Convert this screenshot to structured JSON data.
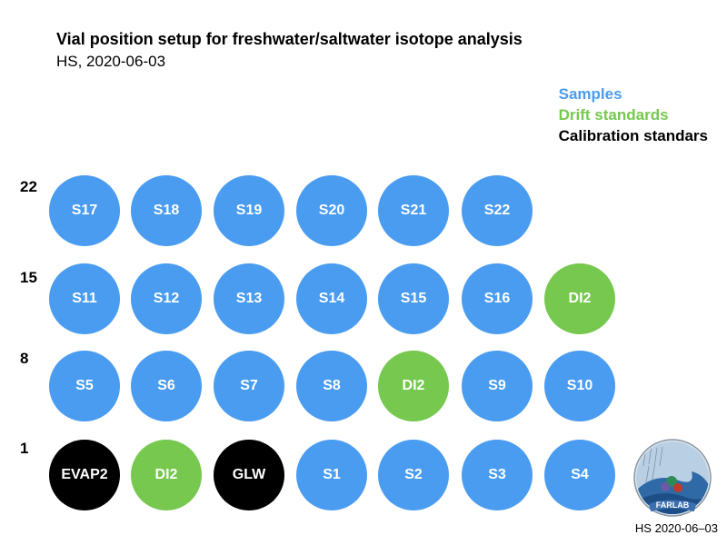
{
  "title": "Vial position setup for freshwater/saltwater isotope analysis",
  "subtitle": "HS, 2020-06-03",
  "legend": [
    {
      "label": "Samples",
      "color": "#4a9cf0"
    },
    {
      "label": "Drift standards",
      "color": "#76c84f"
    },
    {
      "label": "Calibration standars",
      "color": "#000000"
    }
  ],
  "rows": [
    {
      "label": "22",
      "vials": [
        {
          "text": "S17",
          "kind": "sample"
        },
        {
          "text": "S18",
          "kind": "sample"
        },
        {
          "text": "S19",
          "kind": "sample"
        },
        {
          "text": "S20",
          "kind": "sample"
        },
        {
          "text": "S21",
          "kind": "sample"
        },
        {
          "text": "S22",
          "kind": "sample"
        }
      ]
    },
    {
      "label": "15",
      "vials": [
        {
          "text": "S11",
          "kind": "sample"
        },
        {
          "text": "S12",
          "kind": "sample"
        },
        {
          "text": "S13",
          "kind": "sample"
        },
        {
          "text": "S14",
          "kind": "sample"
        },
        {
          "text": "S15",
          "kind": "sample"
        },
        {
          "text": "S16",
          "kind": "sample"
        },
        {
          "text": "DI2",
          "kind": "drift"
        }
      ]
    },
    {
      "label": "8",
      "vials": [
        {
          "text": "S5",
          "kind": "sample"
        },
        {
          "text": "S6",
          "kind": "sample"
        },
        {
          "text": "S7",
          "kind": "sample"
        },
        {
          "text": "S8",
          "kind": "sample"
        },
        {
          "text": "DI2",
          "kind": "drift"
        },
        {
          "text": "S9",
          "kind": "sample"
        },
        {
          "text": "S10",
          "kind": "sample"
        }
      ]
    },
    {
      "label": "1",
      "vials": [
        {
          "text": "EVAP2",
          "kind": "calibration"
        },
        {
          "text": "DI2",
          "kind": "drift"
        },
        {
          "text": "GLW",
          "kind": "calibration"
        },
        {
          "text": "S1",
          "kind": "sample"
        },
        {
          "text": "S2",
          "kind": "sample"
        },
        {
          "text": "S3",
          "kind": "sample"
        },
        {
          "text": "S4",
          "kind": "sample"
        }
      ]
    }
  ],
  "colors": {
    "sample": "#4a9cf0",
    "drift": "#76c84f",
    "calibration": "#000000"
  },
  "logo_text": "FARLAB",
  "footer": "HS 2020-06–03"
}
